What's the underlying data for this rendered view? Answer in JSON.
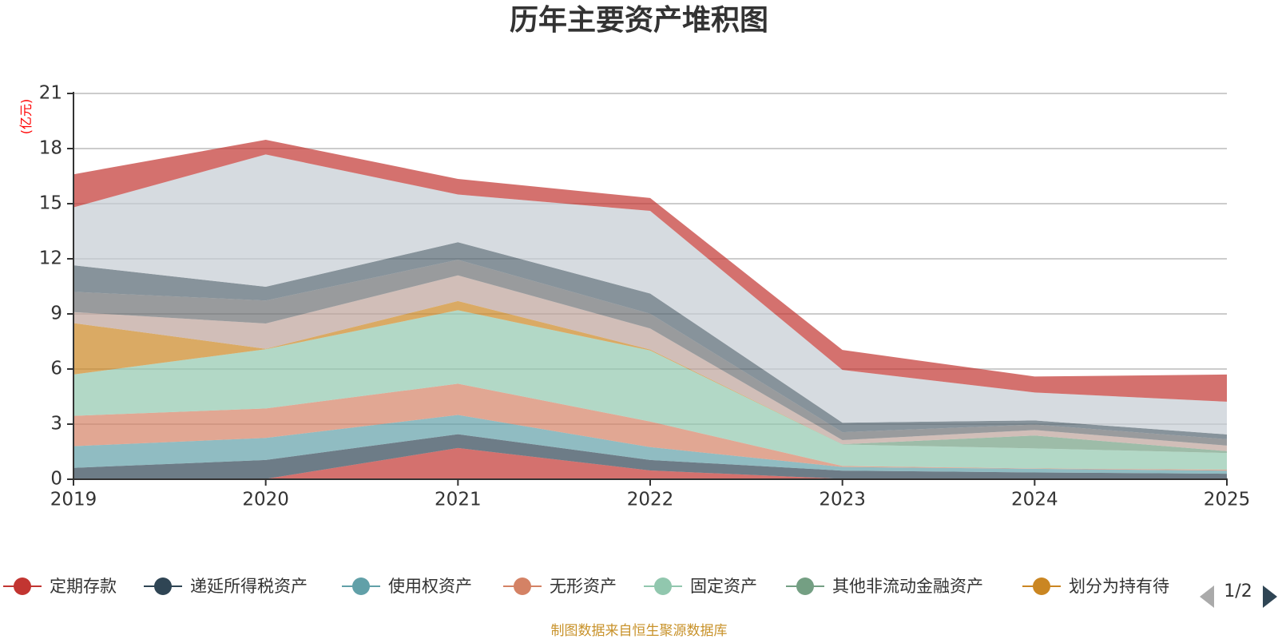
{
  "chart_data": {
    "type": "area",
    "stacked": true,
    "title": "历年主要资产堆积图",
    "ylabel": "(亿元)",
    "xlabel": "",
    "ylim": [
      0,
      21
    ],
    "yticks": [
      "0",
      "3",
      "6",
      "9",
      "12",
      "15",
      "18",
      "21"
    ],
    "categories": [
      "2019",
      "2020",
      "2021",
      "2022",
      "2023",
      "2024",
      "2025"
    ],
    "grid": true,
    "legend_position": "bottom",
    "legend_page": "1/2",
    "series": [
      {
        "name": "定期存款",
        "color": "#c23531",
        "values": [
          0,
          0.02,
          1.7,
          0.48,
          0.02,
          0.02,
          0.02
        ],
        "in_legend": true
      },
      {
        "name": "递延所得税资产",
        "color": "#2f4554",
        "values": [
          0.62,
          1.03,
          0.75,
          0.57,
          0.45,
          0.35,
          0.28
        ],
        "in_legend": true
      },
      {
        "name": "使用权资产",
        "color": "#61a0a8",
        "values": [
          1.18,
          1.2,
          1.05,
          0.7,
          0.2,
          0.2,
          0.17
        ],
        "in_legend": true
      },
      {
        "name": "无形资产",
        "color": "#d48265",
        "values": [
          1.65,
          1.6,
          1.7,
          1.39,
          0.05,
          0.02,
          0.05
        ],
        "in_legend": true
      },
      {
        "name": "固定资产",
        "color": "#91c7ae",
        "values": [
          2.25,
          3.23,
          4.0,
          3.87,
          1.17,
          1.09,
          0.91
        ],
        "in_legend": true
      },
      {
        "name": "其他非流动金融资产",
        "color": "#749f83",
        "values": [
          0,
          0,
          0,
          0,
          0.02,
          0.7,
          0.1
        ],
        "in_legend": true
      },
      {
        "name": "划分为持有待",
        "color": "#ca8622",
        "values": [
          2.8,
          0.02,
          0.5,
          0.05,
          0,
          0,
          0
        ],
        "in_legend": true
      },
      {
        "name": "",
        "color": "#bda29a",
        "values": [
          0.6,
          1.38,
          1.4,
          1.15,
          0.22,
          0.3,
          0.3
        ],
        "in_legend": false
      },
      {
        "name": "",
        "color": "#6e7074",
        "values": [
          1.1,
          1.25,
          0.85,
          0.8,
          0.43,
          0.3,
          0.35
        ],
        "in_legend": false
      },
      {
        "name": "",
        "color": "#546570",
        "values": [
          1.45,
          0.75,
          0.95,
          1.1,
          0.52,
          0.22,
          0.26
        ],
        "in_legend": false
      },
      {
        "name": "",
        "color": "#c4ccd3",
        "values": [
          3.15,
          7.2,
          2.6,
          4.5,
          2.87,
          1.52,
          1.78
        ],
        "in_legend": false
      },
      {
        "name": "",
        "color": "#c23531",
        "values": [
          1.8,
          0.8,
          0.85,
          0.7,
          1.09,
          0.87,
          1.48
        ],
        "in_legend": false
      }
    ],
    "source_note": "制图数据来自恒生聚源数据库"
  },
  "legend": {
    "page_indicator": "1/2",
    "prev_icon": "triangle-left-icon",
    "next_icon": "triangle-right-icon",
    "inactive_color": "#aaaaaa",
    "active_color": "#2f4554"
  }
}
